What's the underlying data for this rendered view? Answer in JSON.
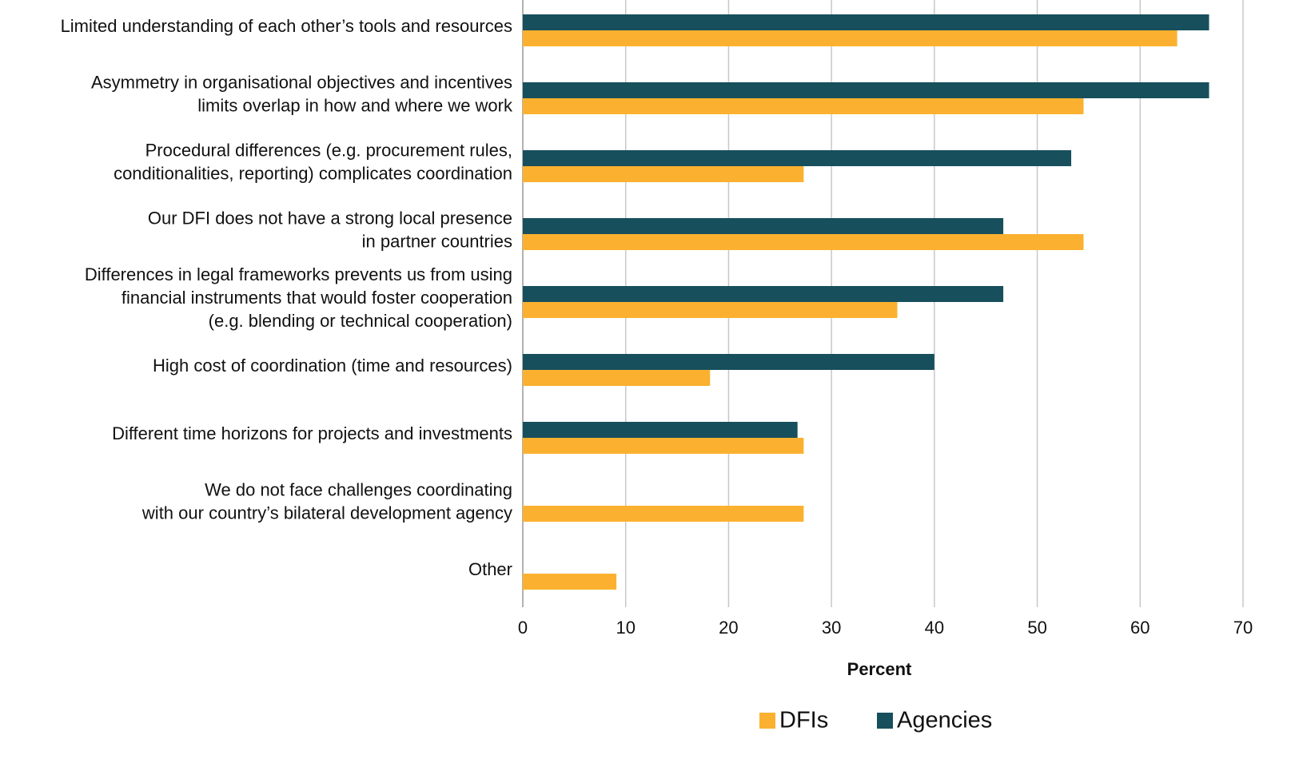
{
  "chart_data": {
    "type": "hbar",
    "x_label": "Percent",
    "categories": [
      [
        "Limited understanding of each other’s tools and resources"
      ],
      [
        "Asymmetry in organisational objectives and incentives",
        "limits overlap in how and where we work"
      ],
      [
        "Procedural differences (e.g. procurement rules,",
        "conditionalities, reporting) complicates coordination"
      ],
      [
        "Our DFI does not have a strong local presence",
        "in partner countries"
      ],
      [
        "Differences in legal frameworks prevents us from using",
        "financial instruments that would foster cooperation",
        "(e.g. blending or technical cooperation)"
      ],
      [
        "High cost of coordination (time and resources)"
      ],
      [
        "Different time horizons for projects and investments"
      ],
      [
        "We do not face challenges coordinating",
        "with our country’s bilateral development agency"
      ],
      [
        "Other"
      ]
    ],
    "series": [
      {
        "name": "DFIs",
        "color": "#fbb12f",
        "values": [
          63.6,
          54.5,
          27.3,
          54.5,
          36.4,
          18.2,
          27.3,
          27.3,
          9.1
        ]
      },
      {
        "name": "Agencies",
        "color": "#174f5c",
        "values": [
          66.7,
          66.7,
          53.3,
          46.7,
          46.7,
          40,
          26.7,
          null,
          null
        ]
      }
    ],
    "xlim": [
      0,
      70
    ],
    "xticks": [
      0,
      10,
      20,
      30,
      40,
      50,
      60,
      70
    ],
    "grid": true
  }
}
